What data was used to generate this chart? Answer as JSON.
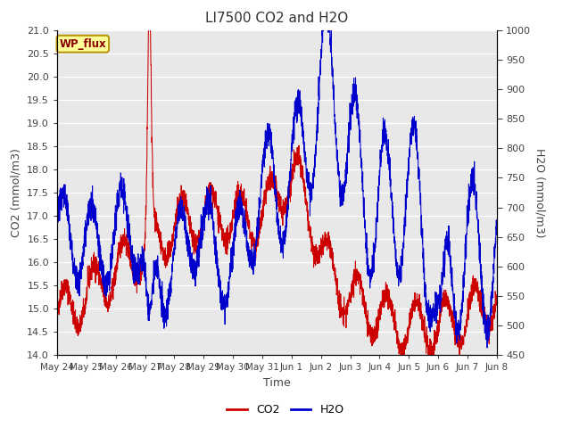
{
  "title": "LI7500 CO2 and H2O",
  "xlabel": "Time",
  "ylabel_left": "CO2 (mmol/m3)",
  "ylabel_right": "H2O (mmol/m3)",
  "ylim_left": [
    14.0,
    21.0
  ],
  "ylim_right": [
    450,
    1000
  ],
  "x_tick_labels": [
    "May 24",
    "May 25",
    "May 26",
    "May 27",
    "May 28",
    "May 29",
    "May 30",
    "May 31",
    "Jun 1",
    "Jun 2",
    "Jun 3",
    "Jun 4",
    "Jun 5",
    "Jun 6",
    "Jun 7",
    "Jun 8"
  ],
  "bg_color": "#e8e8e8",
  "fig_color": "#ffffff",
  "co2_color": "#cc0000",
  "h2o_color": "#0000cc",
  "annotation_text": "WP_flux",
  "annotation_bg": "#ffff99",
  "annotation_border": "#b8960c",
  "annotation_text_color": "#8b0000",
  "yticks_left": [
    14.0,
    14.5,
    15.0,
    15.5,
    16.0,
    16.5,
    17.0,
    17.5,
    18.0,
    18.5,
    19.0,
    19.5,
    20.0,
    20.5,
    21.0
  ],
  "yticks_right": [
    450,
    500,
    550,
    600,
    650,
    700,
    750,
    800,
    850,
    900,
    950,
    1000
  ],
  "n_points": 3000,
  "seed": 42,
  "title_fontsize": 11,
  "axis_label_fontsize": 9,
  "tick_fontsize": 8,
  "legend_fontsize": 9
}
